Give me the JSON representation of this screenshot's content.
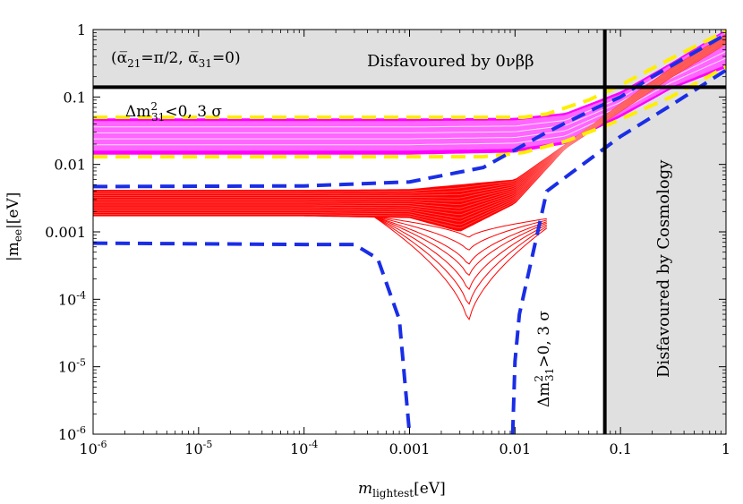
{
  "chart_data": {
    "type": "line",
    "scales": {
      "x": "log",
      "y": "log"
    },
    "xlabel": "m_lightest[eV]",
    "ylabel": "|m_ee|[eV]",
    "xlim": [
      1e-06,
      1
    ],
    "ylim": [
      1e-06,
      1
    ],
    "x_ticks": [
      {
        "value": 1e-06,
        "label": "10^-6"
      },
      {
        "value": 1e-05,
        "label": "10^-5"
      },
      {
        "value": 0.0001,
        "label": "10^-4"
      },
      {
        "value": 0.001,
        "label": "0.001"
      },
      {
        "value": 0.01,
        "label": "0.01"
      },
      {
        "value": 0.1,
        "label": "0.1"
      },
      {
        "value": 1,
        "label": "1"
      }
    ],
    "y_ticks": [
      {
        "value": 1e-06,
        "label": "10^-6"
      },
      {
        "value": 1e-05,
        "label": "10^-5"
      },
      {
        "value": 0.0001,
        "label": "10^-4"
      },
      {
        "value": 0.001,
        "label": "0.001"
      },
      {
        "value": 0.01,
        "label": "0.01"
      },
      {
        "value": 0.1,
        "label": "0.1"
      },
      {
        "value": 1,
        "label": "1"
      }
    ],
    "grid": false,
    "limits": {
      "ovbb_mee": 0.14,
      "cosmology_mlight": 0.071
    },
    "region_labels": {
      "ovbb": "Disfavoured by 0νββ",
      "cosmology": "Disfavoured by Cosmology",
      "phases": "(ᾱ₂₁=π/2, ᾱ₃₁=0)",
      "io": "Δm²₃₁<0, 3 σ",
      "no": "Δm²₃₁>0, 3 σ"
    },
    "annotations": {
      "phases_main": "(α̅",
      "phases_sub1": "21",
      "phases_mid": "=π/2, α̅",
      "phases_sub2": "31",
      "phases_end": "=0)",
      "io_pre": "Δm",
      "io_sup": "2",
      "io_sub": "31",
      "io_post": "<0, 3 σ",
      "no_pre": "Δm",
      "no_sup": "2",
      "no_sub": "31",
      "no_post": ">0, 3 σ",
      "xlabel_main": "m",
      "xlabel_sub": "lightest",
      "xlabel_unit": "[eV]",
      "ylabel_main": "|m",
      "ylabel_sub": "ee",
      "ylabel_unit": "|[eV]"
    },
    "series": [
      {
        "kind": "band",
        "curves": [
          {
            "x": [
              1e-06,
              0.001,
              0.01,
              0.03,
              0.1,
              0.3,
              1
            ],
            "y": [
              0.048,
              0.048,
              0.049,
              0.058,
              0.12,
              0.32,
              1.0
            ]
          },
          {
            "x": [
              1e-06,
              0.001,
              0.01,
              0.03,
              0.1,
              0.3,
              1
            ],
            "y": [
              0.014,
              0.014,
              0.015,
              0.02,
              0.05,
              0.13,
              0.27
            ]
          }
        ]
      },
      {
        "kind": "band",
        "curves": [
          {
            "x": [
              1e-06,
              0.001,
              0.01,
              0.03,
              0.1,
              0.3,
              1
            ],
            "y": [
              0.044,
              0.044,
              0.045,
              0.054,
              0.11,
              0.3,
              0.95
            ]
          },
          {
            "x": [
              1e-06,
              0.001,
              0.01,
              0.03,
              0.1,
              0.3,
              1
            ],
            "y": [
              0.016,
              0.016,
              0.017,
              0.022,
              0.055,
              0.14,
              0.3
            ]
          }
        ]
      },
      {
        "kind": "band",
        "curves": [
          {
            "x": [
              1e-06,
              0.0001,
              0.001,
              0.01,
              0.03,
              0.1,
              0.3,
              1
            ],
            "y": [
              0.0042,
              0.0042,
              0.0043,
              0.006,
              0.02,
              0.08,
              0.27,
              0.85
            ]
          },
          {
            "x": [
              1e-06,
              0.0001,
              0.001,
              0.003,
              0.01,
              0.03,
              0.1,
              0.3,
              1
            ],
            "y": [
              0.0017,
              0.0017,
              0.0016,
              0.001,
              0.0026,
              0.017,
              0.06,
              0.19,
              0.6
            ]
          }
        ]
      },
      {
        "kind": "line",
        "style": "dashed",
        "points": [
          [
            1e-06,
            0.05
          ],
          [
            0.012,
            0.05
          ],
          [
            0.02,
            0.056
          ],
          [
            0.05,
            0.09
          ],
          [
            0.1,
            0.15
          ],
          [
            0.3,
            0.37
          ],
          [
            1,
            0.95
          ]
        ]
      },
      {
        "kind": "line",
        "style": "dashed",
        "points": [
          [
            1e-06,
            0.013
          ],
          [
            0.005,
            0.013
          ],
          [
            0.012,
            0.015
          ],
          [
            0.03,
            0.022
          ],
          [
            0.08,
            0.04
          ],
          [
            0.3,
            0.1
          ],
          [
            1,
            0.28
          ]
        ]
      },
      {
        "kind": "line",
        "style": "dashed",
        "points": [
          [
            1e-06,
            0.0047
          ],
          [
            0.0001,
            0.0048
          ],
          [
            0.001,
            0.0055
          ],
          [
            0.005,
            0.009
          ],
          [
            0.02,
            0.03
          ],
          [
            0.06,
            0.07
          ],
          [
            0.1,
            0.1
          ],
          [
            0.2,
            0.2
          ],
          [
            1,
            0.85
          ]
        ]
      },
      {
        "kind": "line",
        "style": "dashed",
        "points": [
          [
            1e-06,
            0.00068
          ],
          [
            0.0001,
            0.00065
          ],
          [
            0.0003,
            0.00065
          ],
          [
            0.0005,
            0.0004
          ],
          [
            0.0008,
            5e-05
          ],
          [
            0.001,
            1e-06
          ]
        ]
      },
      {
        "kind": "line",
        "style": "dashed",
        "points": [
          [
            0.0095,
            1e-06
          ],
          [
            0.01,
            1.2e-05
          ],
          [
            0.011,
            6e-05
          ],
          [
            0.02,
            0.004
          ],
          [
            0.04,
            0.009
          ],
          [
            0.1,
            0.026
          ],
          [
            0.3,
            0.075
          ],
          [
            1,
            0.25
          ]
        ]
      }
    ],
    "colors": {
      "axis": "#000000",
      "shading": "#e0e0e0",
      "io_band": "#ff00ff",
      "io_inner": "#ff66ff",
      "no_band": "#ff0000",
      "dashed_yellow": "#ffee00",
      "dashed_blue": "#1a2ee6",
      "limit": "#000000"
    }
  }
}
